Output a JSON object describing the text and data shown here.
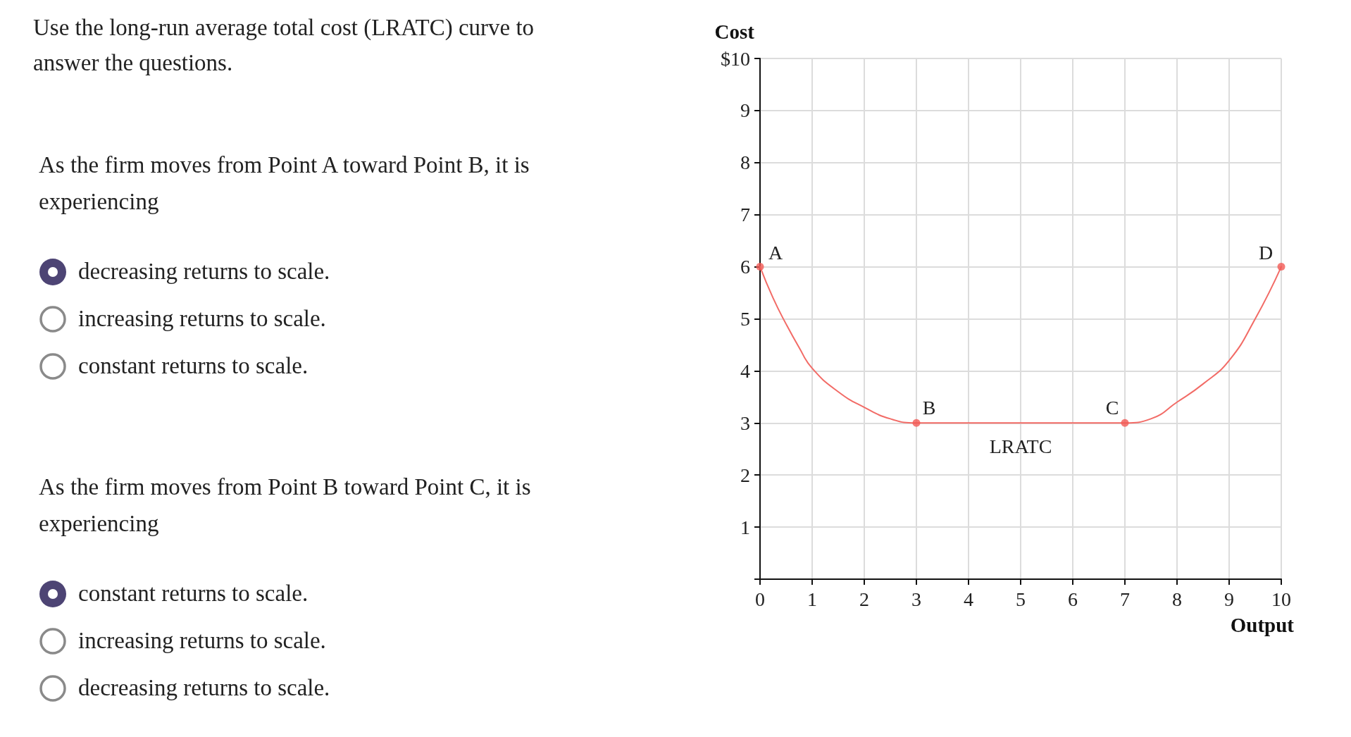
{
  "chart_data": {
    "type": "line",
    "title": "Use the long-run average total cost (LRATC) curve to answer the questions.",
    "xlabel": "Output",
    "ylabel": "Cost",
    "series": [
      {
        "color": "#f26b66",
        "marker": "none",
        "x": [
          0,
          0.25,
          0.5,
          0.75,
          1,
          1.5,
          2,
          2.5,
          3,
          4,
          5,
          6,
          7,
          7.5,
          8,
          8.5,
          9,
          9.5,
          10
        ],
        "values": [
          6,
          5.4,
          4.9,
          4.45,
          4.05,
          3.6,
          3.3,
          3.08,
          3,
          3,
          3,
          3,
          3,
          3.08,
          3.4,
          3.75,
          4.2,
          5,
          6
        ]
      },
      {
        "type": "scatter",
        "color": "#f25a55",
        "marker": "circle",
        "x": [
          0,
          3,
          7,
          10
        ],
        "values": [
          6,
          3,
          3,
          6
        ]
      }
    ],
    "xlim": [
      0,
      10
    ],
    "ylim": [
      0,
      10
    ],
    "xticks": [
      0,
      1,
      2,
      3,
      4,
      5,
      6,
      7,
      8,
      9,
      10
    ],
    "yticks": [
      {
        "value": 0,
        "label": null
      },
      1,
      2,
      3,
      4,
      5,
      6,
      7,
      8,
      9,
      {
        "value": 10,
        "label": "$10"
      }
    ],
    "grid": true,
    "annotations": [
      {
        "text": "A",
        "x": 0,
        "y": 6
      },
      {
        "text": "B",
        "x": 3,
        "y": 3
      },
      {
        "text": "C",
        "x": 7,
        "y": 3
      },
      {
        "text": "D",
        "x": 10,
        "y": 6
      },
      "LRATC",
      "As the firm moves from Point A toward Point B, it is experiencing",
      "decreasing returns to scale.",
      "increasing returns to scale.",
      "constant returns to scale.",
      "As the firm moves from Point B toward Point C, it is experiencing",
      "constant returns to scale.",
      "increasing returns to scale.",
      "decreasing returns to scale."
    ]
  }
}
